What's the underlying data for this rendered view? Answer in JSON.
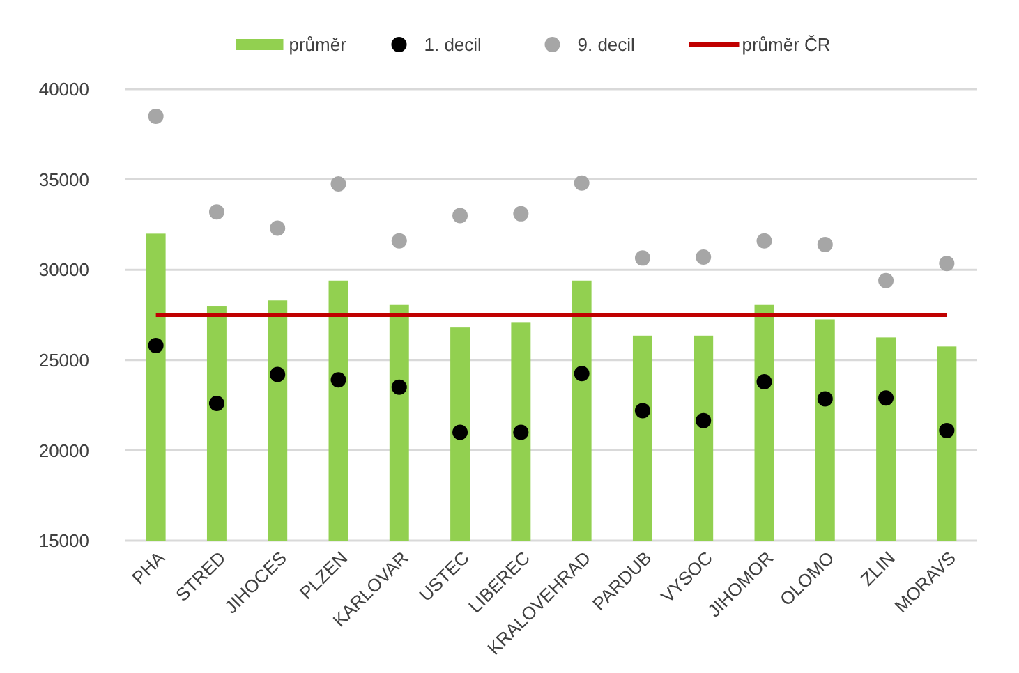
{
  "chart_data": {
    "type": "bar",
    "categories": [
      "PHA",
      "STRED",
      "JIHOCES",
      "PLZEN",
      "KARLOVAR",
      "USTEC",
      "LIBEREC",
      "KRALOVEHRAD",
      "PARDUB",
      "VYSOC",
      "JIHOMOR",
      "OLOMO",
      "ZLIN",
      "MORAVS"
    ],
    "series": [
      {
        "name": "průměr",
        "color": "#92d050",
        "values": [
          32000,
          28000,
          28300,
          29400,
          28050,
          26800,
          27100,
          29400,
          26350,
          26350,
          28050,
          27250,
          26250,
          25750
        ]
      },
      {
        "name": "1. decil",
        "type": "scatter",
        "marker": "circle",
        "color": "#000000",
        "values": [
          25800,
          22600,
          24200,
          23900,
          23500,
          21000,
          21000,
          24250,
          22200,
          21650,
          23800,
          22850,
          22900,
          21100
        ]
      },
      {
        "name": "9. decil",
        "type": "scatter",
        "marker": "circle",
        "color": "#a6a6a6",
        "values": [
          38500,
          33200,
          32300,
          34750,
          31600,
          33000,
          33100,
          34800,
          30650,
          30700,
          31600,
          31400,
          29400,
          30350
        ]
      },
      {
        "name": "průměr ČR",
        "type": "line",
        "color": "#c00000",
        "values": [
          27500,
          27500,
          27500,
          27500,
          27500,
          27500,
          27500,
          27500,
          27500,
          27500,
          27500,
          27500,
          27500,
          27500
        ]
      }
    ],
    "ylim": [
      15000,
      40000
    ],
    "yticks": [
      15000,
      20000,
      25000,
      30000,
      35000,
      40000
    ],
    "grid": "y",
    "legend": "top"
  }
}
